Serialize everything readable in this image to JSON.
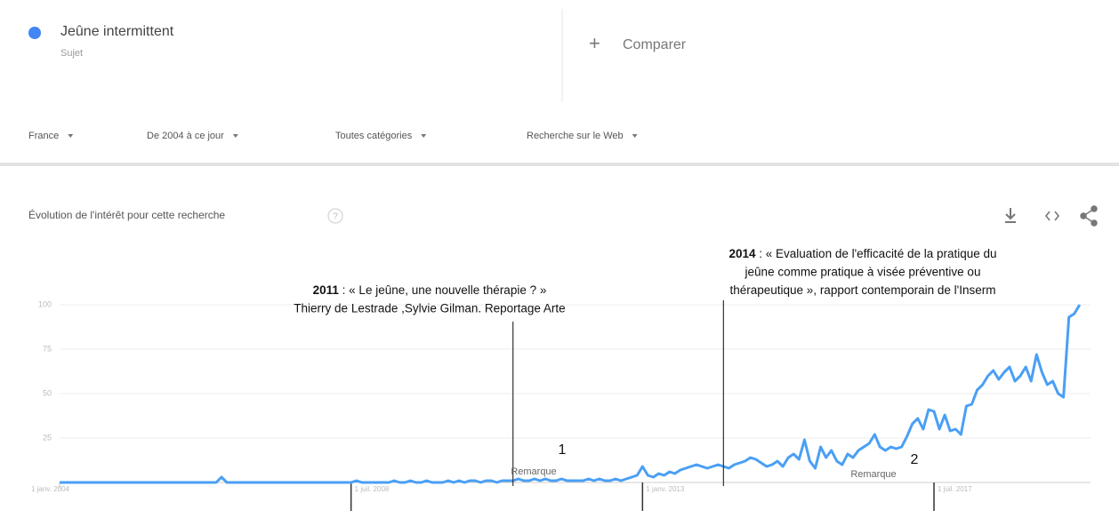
{
  "header": {
    "term": "Jeûne intermittent",
    "term_type": "Sujet",
    "compare": "Comparer"
  },
  "filters": [
    "France",
    "De 2004 à ce jour",
    "Toutes catégories",
    "Recherche sur le Web"
  ],
  "section_title": "Évolution de l'intérêt pour cette recherche",
  "chart_data": {
    "type": "line",
    "color": "#4a9ff5",
    "x": [
      "2004-01",
      "2004-02",
      "2004-03",
      "2004-04",
      "2004-05",
      "2004-06",
      "2004-07",
      "2004-08",
      "2004-09",
      "2004-10",
      "2004-11",
      "2004-12",
      "2005-01",
      "2005-02",
      "2005-03",
      "2005-04",
      "2005-05",
      "2005-06",
      "2005-07",
      "2005-08",
      "2005-09",
      "2005-10",
      "2005-11",
      "2005-12",
      "2006-01",
      "2006-02",
      "2006-03",
      "2006-04",
      "2006-05",
      "2006-06",
      "2006-07",
      "2006-08",
      "2006-09",
      "2006-10",
      "2006-11",
      "2006-12",
      "2007-01",
      "2007-02",
      "2007-03",
      "2007-04",
      "2007-05",
      "2007-06",
      "2007-07",
      "2007-08",
      "2007-09",
      "2007-10",
      "2007-11",
      "2007-12",
      "2008-01",
      "2008-02",
      "2008-03",
      "2008-04",
      "2008-05",
      "2008-06",
      "2008-07",
      "2008-08",
      "2008-09",
      "2008-10",
      "2008-11",
      "2008-12",
      "2009-01",
      "2009-02",
      "2009-03",
      "2009-04",
      "2009-05",
      "2009-06",
      "2009-07",
      "2009-08",
      "2009-09",
      "2009-10",
      "2009-11",
      "2009-12",
      "2010-01",
      "2010-02",
      "2010-03",
      "2010-04",
      "2010-05",
      "2010-06",
      "2010-07",
      "2010-08",
      "2010-09",
      "2010-10",
      "2010-11",
      "2010-12",
      "2011-01",
      "2011-02",
      "2011-03",
      "2011-04",
      "2011-05",
      "2011-06",
      "2011-07",
      "2011-08",
      "2011-09",
      "2011-10",
      "2011-11",
      "2011-12",
      "2012-01",
      "2012-02",
      "2012-03",
      "2012-04",
      "2012-05",
      "2012-06",
      "2012-07",
      "2012-08",
      "2012-09",
      "2012-10",
      "2012-11",
      "2012-12",
      "2013-01",
      "2013-02",
      "2013-03",
      "2013-04",
      "2013-05",
      "2013-06",
      "2013-07",
      "2013-08",
      "2013-09",
      "2013-10",
      "2013-11",
      "2013-12",
      "2014-01",
      "2014-02",
      "2014-03",
      "2014-04",
      "2014-05",
      "2014-06",
      "2014-07",
      "2014-08",
      "2014-09",
      "2014-10",
      "2014-11",
      "2014-12",
      "2015-01",
      "2015-02",
      "2015-03",
      "2015-04",
      "2015-05",
      "2015-06",
      "2015-07",
      "2015-08",
      "2015-09",
      "2015-10",
      "2015-11",
      "2015-12",
      "2016-01",
      "2016-02",
      "2016-03",
      "2016-04",
      "2016-05",
      "2016-06",
      "2016-07",
      "2016-08",
      "2016-09",
      "2016-10",
      "2016-11",
      "2016-12",
      "2017-01",
      "2017-02",
      "2017-03",
      "2017-04",
      "2017-05",
      "2017-06",
      "2017-07",
      "2017-08",
      "2017-09",
      "2017-10",
      "2017-11",
      "2017-12",
      "2018-01",
      "2018-02",
      "2018-03",
      "2018-04",
      "2018-05",
      "2018-06",
      "2018-07",
      "2018-08",
      "2018-09",
      "2018-10",
      "2018-11",
      "2018-12",
      "2019-01",
      "2019-02",
      "2019-03",
      "2019-04",
      "2019-05",
      "2019-06",
      "2019-07",
      "2019-08",
      "2019-09",
      "2019-10"
    ],
    "values": [
      0,
      0,
      0,
      0,
      0,
      0,
      0,
      0,
      0,
      0,
      0,
      0,
      0,
      0,
      0,
      0,
      0,
      0,
      0,
      0,
      0,
      0,
      0,
      0,
      0,
      0,
      0,
      0,
      0,
      0,
      3,
      0,
      0,
      0,
      0,
      0,
      0,
      0,
      0,
      0,
      0,
      0,
      0,
      0,
      0,
      0,
      0,
      0,
      0,
      0,
      0,
      0,
      0,
      0,
      0,
      1,
      0,
      0,
      0,
      0,
      0,
      0,
      1,
      0,
      0,
      1,
      0,
      0,
      1,
      0,
      0,
      0,
      1,
      0,
      1,
      0,
      1,
      1,
      0,
      1,
      1,
      0,
      1,
      1,
      1,
      2,
      1,
      1,
      2,
      1,
      2,
      1,
      1,
      2,
      1,
      1,
      1,
      1,
      2,
      1,
      2,
      1,
      1,
      2,
      1,
      2,
      3,
      4,
      9,
      4,
      3,
      5,
      4,
      6,
      5,
      7,
      8,
      9,
      10,
      9,
      8,
      9,
      10,
      9,
      8,
      10,
      11,
      12,
      14,
      13,
      11,
      9,
      10,
      12,
      9,
      14,
      16,
      13,
      24,
      12,
      8,
      20,
      14,
      18,
      12,
      10,
      16,
      14,
      18,
      20,
      22,
      27,
      20,
      18,
      20,
      19,
      20,
      26,
      33,
      36,
      30,
      41,
      40,
      30,
      38,
      29,
      30,
      27,
      43,
      44,
      52,
      55,
      60,
      63,
      58,
      62,
      65,
      57,
      60,
      65,
      57,
      72,
      62,
      55,
      57,
      50,
      48,
      93,
      95,
      100
    ],
    "ylim": [
      0,
      100
    ],
    "yticks": [
      25,
      50,
      75,
      100
    ],
    "xticks": [
      {
        "value": "2004-01",
        "label": "1 janv. 2004"
      },
      {
        "value": "2008-07",
        "label": "1 juil. 2008"
      },
      {
        "value": "2013-01",
        "label": "1 janv. 2013"
      },
      {
        "value": "2017-07",
        "label": "1 juil. 2017"
      }
    ],
    "grid": true,
    "annotations": [
      {
        "x": "2011-01",
        "year": "2011",
        "lines": [
          " : « Le jeûne, une nouvelle thérapie ? »",
          "Thierry de Lestrade ,Sylvie Gilman. Reportage Arte"
        ]
      },
      {
        "x": "2014-04",
        "year": "2014",
        "lines": [
          " : « Evaluation de l'efficacité de la pratique du",
          "jeûne comme pratique à visée préventive ou",
          "thérapeutique », rapport contemporain de l'Inserm"
        ]
      }
    ],
    "notes": [
      {
        "number": "1",
        "label": "Remarque"
      },
      {
        "number": "2",
        "label": "Remarque"
      }
    ]
  }
}
